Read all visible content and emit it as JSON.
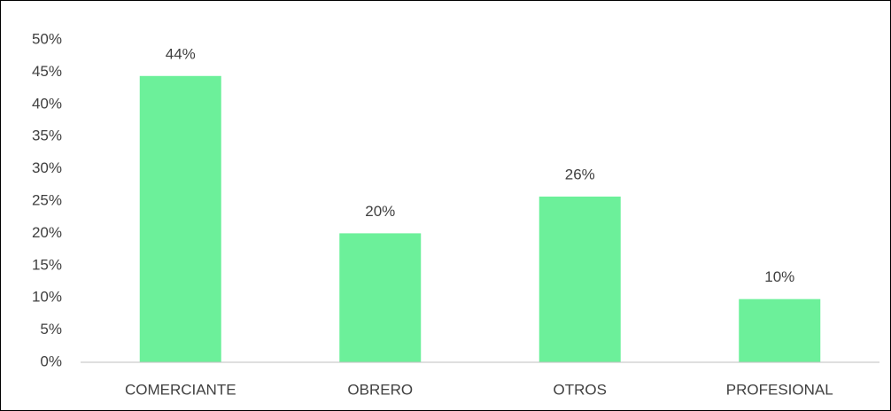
{
  "chart_data": {
    "type": "bar",
    "categories": [
      "COMERCIANTE",
      "OBRERO",
      "OTROS",
      "PROFESIONAL"
    ],
    "values": [
      44.4,
      20,
      25.7,
      9.8
    ],
    "value_labels": [
      "44%",
      "20%",
      "26%",
      "10%"
    ],
    "color": "#6cf09a",
    "ylim": [
      0,
      50
    ],
    "yticks": [
      {
        "value": 0,
        "label": "0%"
      },
      {
        "value": 5,
        "label": "5%"
      },
      {
        "value": 10,
        "label": "10%"
      },
      {
        "value": 15,
        "label": "15%"
      },
      {
        "value": 20,
        "label": "20%"
      },
      {
        "value": 25,
        "label": "25%"
      },
      {
        "value": 30,
        "label": "30%"
      },
      {
        "value": 35,
        "label": "35%"
      },
      {
        "value": 40,
        "label": "40%"
      },
      {
        "value": 45,
        "label": "45%"
      },
      {
        "value": 50,
        "label": "50%"
      }
    ],
    "grid": false
  }
}
